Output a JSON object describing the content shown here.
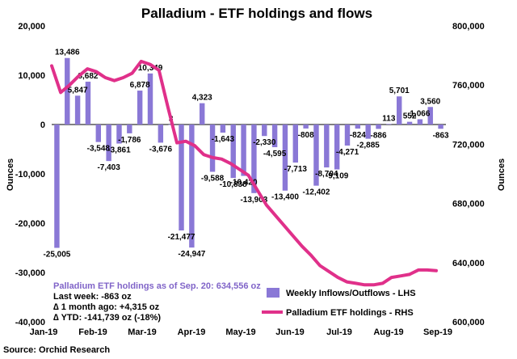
{
  "chart_data": {
    "type": "bar",
    "title": "Palladium - ETF holdings and flows",
    "ylabel_left": "Ounces",
    "ylabel_right": "Ounces",
    "ylim_left": [
      -40000,
      20000
    ],
    "ylim_right": [
      600000,
      800000
    ],
    "yticks_left": [
      "20,000",
      "10,000",
      "0",
      "-10,000",
      "-20,000",
      "-30,000",
      "-40,000"
    ],
    "yticks_left_values": [
      20000,
      10000,
      0,
      -10000,
      -20000,
      -30000,
      -40000
    ],
    "yticks_right": [
      "800,000",
      "760,000",
      "720,000",
      "680,000",
      "640,000",
      "600,000"
    ],
    "yticks_right_values": [
      800000,
      760000,
      720000,
      680000,
      640000,
      600000
    ],
    "x_tick_labels": [
      "Jan-19",
      "Feb-19",
      "Mar-19",
      "Apr-19",
      "May-19",
      "Jun-19",
      "Jul-19",
      "Aug-19",
      "Sep-19"
    ],
    "series": [
      {
        "name": "Weekly Inflows/Outflows - LHS",
        "kind": "bar",
        "color": "#8a78d6",
        "values": [
          -25005,
          13486,
          5847,
          8682,
          -3548,
          -7403,
          -3861,
          -1786,
          6878,
          10349,
          -3676,
          3,
          -21477,
          -24947,
          4323,
          -9588,
          -1643,
          -10838,
          -10420,
          -13903,
          -2330,
          -4595,
          -13400,
          -7713,
          -808,
          -12402,
          -8704,
          -9109,
          -4271,
          -824,
          -2885,
          -886,
          113,
          5701,
          552,
          1066,
          3560,
          -863
        ],
        "labels": [
          "-25,005",
          "13,486",
          "5,847",
          "8,682",
          "-3,548",
          "-7,403",
          "-3,861",
          "-1,786",
          "6,878",
          "10,349",
          "-3,676",
          "3",
          "-21,477",
          "-24,947",
          "4,323",
          "-9,588",
          "-1,643",
          "-10,838",
          "-10,420",
          "-13,903",
          "-2,330",
          "-4,595",
          "-13,400",
          "-7,713",
          "-808",
          "-12,402",
          "-8,704",
          "-9,109",
          "-4,271",
          "-824",
          "-2,885",
          "-886",
          "113",
          "5,701",
          "552",
          "1,066",
          "3,560",
          "-863"
        ]
      },
      {
        "name": "Palladium ETF holdings - RHS",
        "kind": "line",
        "color": "#e0308a",
        "values": [
          773000,
          755000,
          760000,
          766000,
          771000,
          769000,
          765000,
          763000,
          765000,
          768000,
          776000,
          774000,
          770000,
          745000,
          721000,
          722000,
          719000,
          713000,
          711000,
          710000,
          707000,
          703000,
          699000,
          689000,
          679000,
          672000,
          665000,
          658000,
          651000,
          645000,
          638000,
          634000,
          630000,
          627000,
          626000,
          625000,
          625000,
          626000,
          630000,
          631000,
          632000,
          635000,
          635000,
          634556
        ]
      }
    ],
    "annotation": {
      "heading": "Palladium ETF holdings as of Sep. 20: 634,556 oz",
      "lines": [
        "Last week: -863 oz",
        "∆ 1 month ago: +4,315 oz",
        "∆ YTD: -141,739 oz (-18%)"
      ]
    },
    "legend_position": "bottom-right",
    "grid": false,
    "source": "Source: Orchid Research"
  }
}
